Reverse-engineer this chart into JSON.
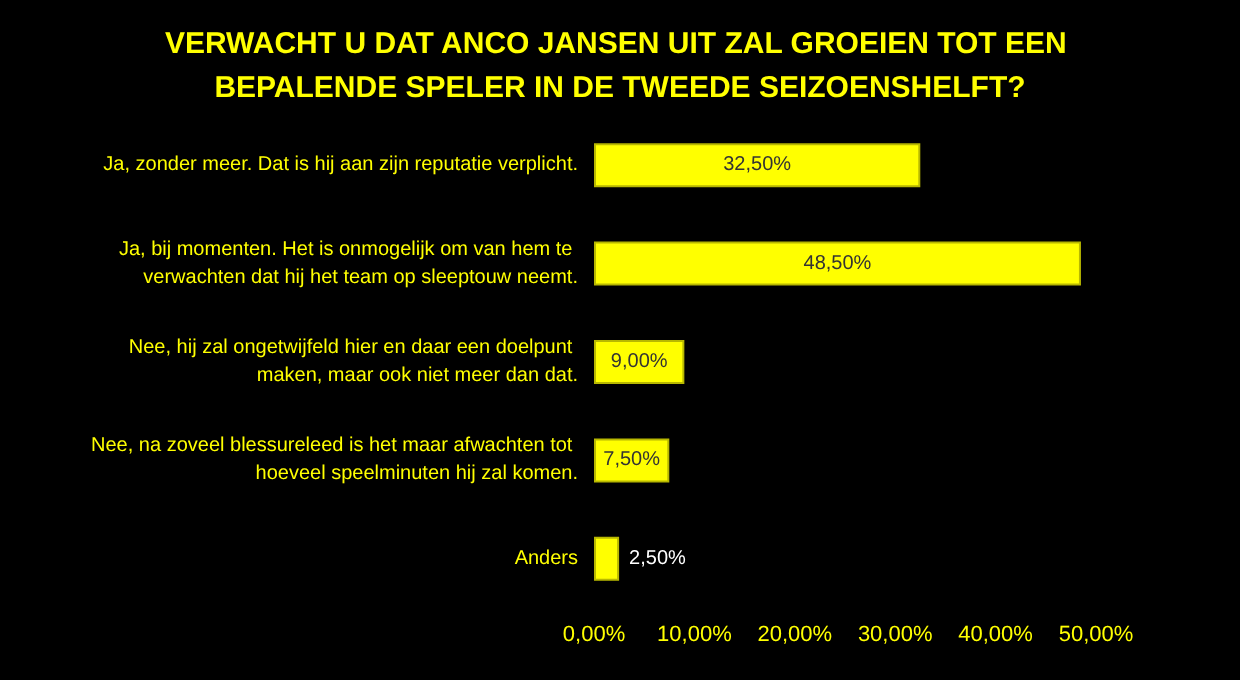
{
  "chart_data": {
    "type": "bar",
    "orientation": "horizontal",
    "title": "VERWACHT U DAT ANCO JANSEN UIT ZAL GROEIEN TOT EEN BEPALENDE SPELER IN DE TWEEDE SEIZOENSHELFT?",
    "categories": [
      "Ja, zonder meer. Dat is hij aan zijn reputatie verplicht.",
      "Ja, bij momenten. Het is onmogelijk om van hem te verwachten dat hij het team op sleeptouw neemt.",
      "Nee, hij zal ongetwijfeld hier en daar een doelpunt maken, maar ook niet meer dan dat.",
      "Nee, na zoveel blessureleed is het maar afwachten tot hoeveel speelminuten hij zal komen.",
      "Anders"
    ],
    "values": [
      32.5,
      48.5,
      9,
      7.5,
      2.5
    ],
    "value_labels": [
      "32,50%",
      "48,50%",
      "9,00%",
      "7,50%",
      "2,50%"
    ],
    "color": "#ffff00",
    "xlim": [
      0,
      50
    ],
    "xticks": [
      {
        "value": 0,
        "label": "0,00%"
      },
      {
        "value": 10,
        "label": "10,00%"
      },
      {
        "value": 20,
        "label": "20,00%"
      },
      {
        "value": 30,
        "label": "30,00%"
      },
      {
        "value": 40,
        "label": "40,00%"
      },
      {
        "value": 50,
        "label": "50,00%"
      }
    ],
    "grid": false
  }
}
